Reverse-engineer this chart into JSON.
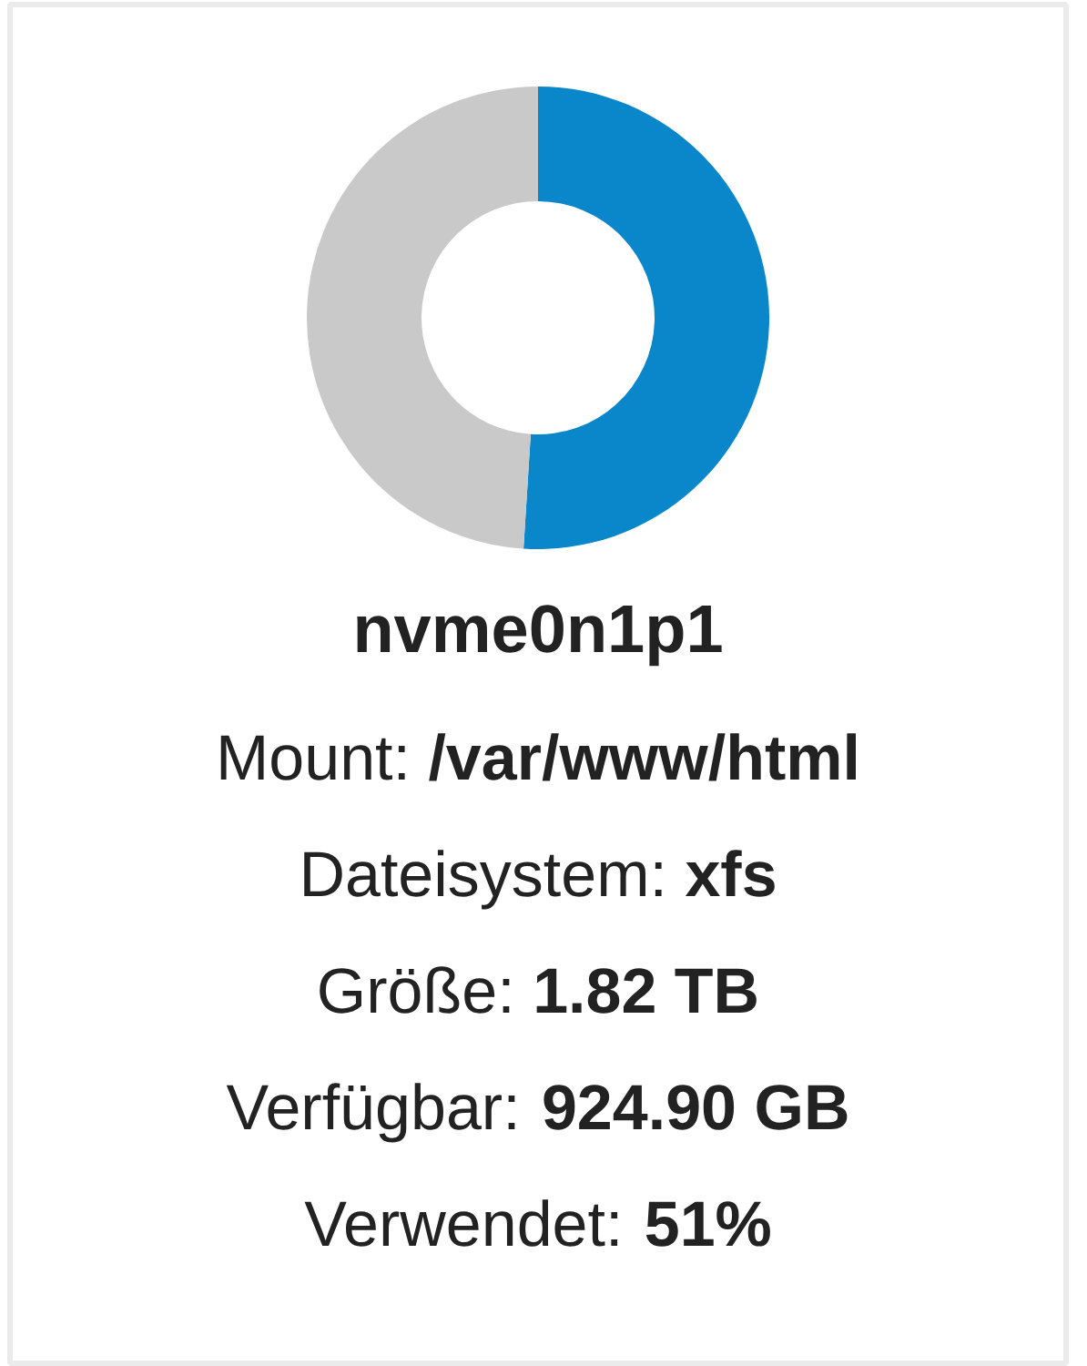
{
  "chart_data": {
    "type": "donut",
    "title": "nvme0n1p1",
    "categories": [
      null,
      null
    ],
    "values": [
      51,
      49
    ],
    "colors": [
      "#0a86cb",
      "#c9c9c9"
    ],
    "annotations": [
      "Mount: /var/www/html",
      "Dateisystem: xfs",
      "Größe: 1.82 TB",
      "Verfügbar: 924.90 GB",
      "Verwendet: 51%"
    ]
  }
}
